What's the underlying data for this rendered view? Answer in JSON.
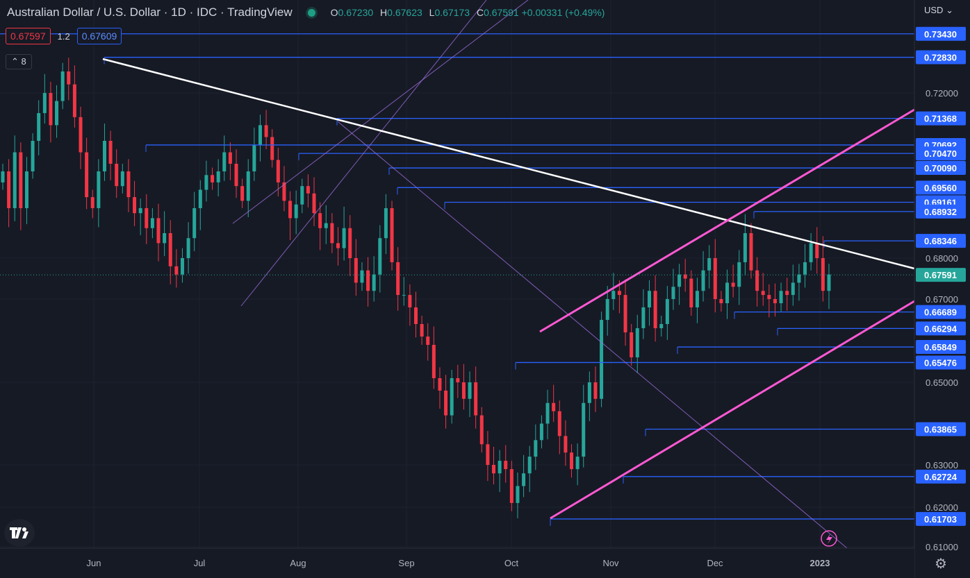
{
  "header": {
    "title": "Australian Dollar / U.S. Dollar · 1D · IDC · TradingView",
    "o_label": "O",
    "o_value": "0.67230",
    "h_label": "H",
    "h_value": "0.67623",
    "l_label": "L",
    "l_value": "0.67173",
    "c_label": "C",
    "c_value": "0.67591 +0.00331 (+0.49%)"
  },
  "sell_price": "0.67597",
  "spread": "1.2",
  "buy_price": "0.67609",
  "indicator_count": "8",
  "currency": "USD",
  "settings_icon": "gear-icon",
  "logo_icon": "tradingview-logo",
  "alert_icon": "lightning-icon",
  "colors": {
    "up": "#26a69a",
    "down": "#f23645",
    "level": "#2962ff",
    "channel": "#ff59d3",
    "trend": "#ffffff",
    "pitchfork": "#9c6ddb"
  },
  "chart_data": {
    "type": "candlestick",
    "symbol": "AUDUSD",
    "timeframe": "1D",
    "xticks": [
      "Jun",
      "Jul",
      "Aug",
      "Sep",
      "Oct",
      "Nov",
      "Dec",
      "2023"
    ],
    "yticks": [
      "0.72000",
      "0.68000",
      "0.67000",
      "0.65000",
      "0.63000",
      "0.62000",
      "0.61000"
    ],
    "last_price": "0.67591",
    "levels": [
      "0.73430",
      "0.72830",
      "0.71368",
      "0.70692",
      "0.70470",
      "0.70090",
      "0.69560",
      "0.69161",
      "0.68932",
      "0.68346",
      "0.66689",
      "0.66294",
      "0.65849",
      "0.65476",
      "0.63865",
      "0.62724",
      "0.61703"
    ],
    "candles_close": [
      0.7,
      0.69,
      0.705,
      0.69,
      0.7,
      0.708,
      0.715,
      0.72,
      0.712,
      0.718,
      0.725,
      0.722,
      0.714,
      0.705,
      0.693,
      0.69,
      0.7,
      0.708,
      0.702,
      0.696,
      0.7,
      0.693,
      0.689,
      0.69,
      0.686,
      0.688,
      0.683,
      0.685,
      0.678,
      0.676,
      0.68,
      0.684,
      0.69,
      0.695,
      0.699,
      0.697,
      0.7,
      0.705,
      0.702,
      0.696,
      0.692,
      0.7,
      0.707,
      0.712,
      0.709,
      0.703,
      0.697,
      0.692,
      0.688,
      0.691,
      0.696,
      0.694,
      0.689,
      0.686,
      0.687,
      0.683,
      0.682,
      0.686,
      0.68,
      0.674,
      0.677,
      0.672,
      0.676,
      0.684,
      0.69,
      0.679,
      0.671,
      0.671,
      0.668,
      0.664,
      0.661,
      0.659,
      0.651,
      0.648,
      0.642,
      0.651,
      0.65,
      0.646,
      0.65,
      0.642,
      0.635,
      0.63,
      0.628,
      0.631,
      0.629,
      0.621,
      0.625,
      0.628,
      0.632,
      0.636,
      0.64,
      0.645,
      0.643,
      0.637,
      0.633,
      0.629,
      0.632,
      0.645,
      0.65,
      0.646,
      0.665,
      0.67,
      0.672,
      0.671,
      0.662,
      0.656,
      0.663,
      0.668,
      0.672,
      0.663,
      0.664,
      0.67,
      0.673,
      0.676,
      0.675,
      0.668,
      0.672,
      0.677,
      0.68,
      0.67,
      0.669,
      0.674,
      0.673,
      0.679,
      0.685,
      0.677,
      0.672,
      0.671,
      0.67,
      0.669,
      0.672,
      0.671,
      0.674,
      0.676,
      0.679,
      0.683,
      0.68,
      0.672,
      0.676
    ]
  }
}
